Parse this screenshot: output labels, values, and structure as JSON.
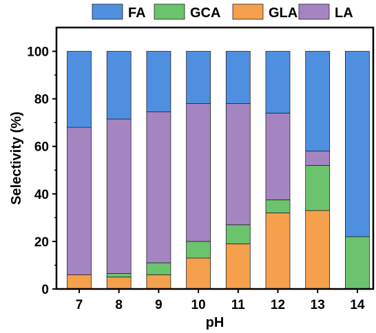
{
  "chart_data": {
    "type": "bar",
    "stacked": true,
    "xlabel": "pH",
    "ylabel": "Selectivity (%)",
    "categories": [
      "7",
      "8",
      "9",
      "10",
      "11",
      "12",
      "13",
      "14"
    ],
    "ylim": [
      0,
      110
    ],
    "yticks": [
      0,
      20,
      40,
      60,
      80,
      100
    ],
    "grid": false,
    "legend_position": "top",
    "series": [
      {
        "name": "GLA",
        "color": "#F5A04C",
        "values": [
          6,
          5,
          6,
          13,
          19,
          32,
          33,
          0
        ]
      },
      {
        "name": "GCA",
        "color": "#6CC36E",
        "values": [
          0,
          1.5,
          5,
          7,
          8,
          5.5,
          19,
          22
        ]
      },
      {
        "name": "LA",
        "color": "#A585C1",
        "values": [
          62,
          65,
          63.5,
          58,
          51,
          36.5,
          6,
          0
        ]
      },
      {
        "name": "FA",
        "color": "#4F8FE0",
        "values": [
          32,
          28.5,
          25.5,
          22,
          22,
          26,
          42,
          78
        ]
      }
    ],
    "legend_order": [
      "FA",
      "GCA",
      "GLA",
      "LA"
    ]
  }
}
